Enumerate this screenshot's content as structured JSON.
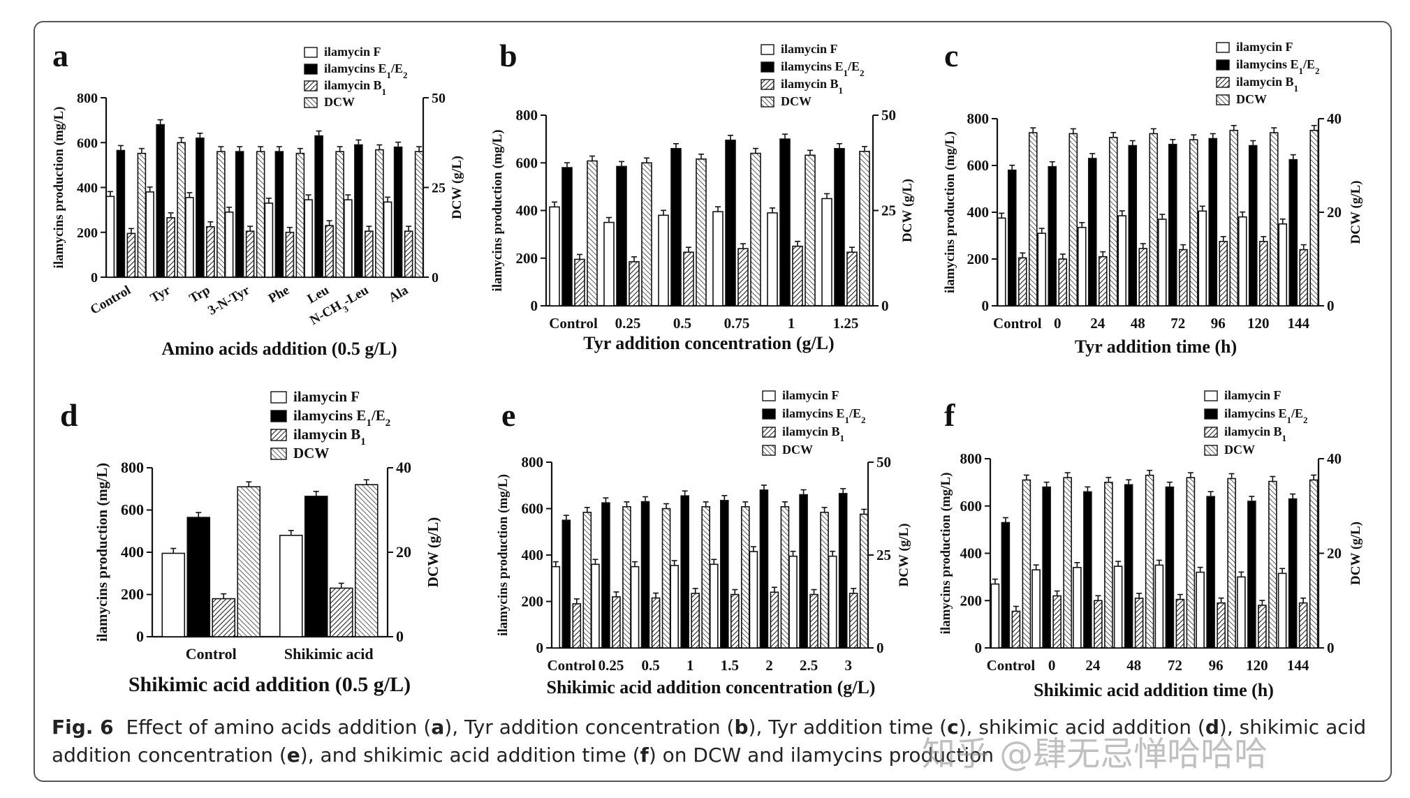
{
  "caption": {
    "prefix": "Fig. 6",
    "text_1": "Effect of amino acids addition (",
    "a": "a",
    "text_2": "), Tyr addition concentration (",
    "b": "b",
    "text_3": "), Tyr addition time (",
    "c": "c",
    "text_4": "), shikimic acid addition (",
    "d": "d",
    "text_5": "), shikimic acid addition concentration (",
    "e": "e",
    "text_6": "), and shikimic acid addition time (",
    "f": "f",
    "text_7": ") on DCW and ilamycins production"
  },
  "watermark": "知乎 @肆无忌惮哈哈哈",
  "chart_data": [
    {
      "panel": "a",
      "type": "bar",
      "xlabel": "Amino acids addition (0.5 g/L)",
      "ylabel": "ilamycins production (mg/L)",
      "ylim": [
        0,
        800
      ],
      "yticks": [
        0,
        200,
        400,
        600,
        800
      ],
      "y2label": "DCW (g/L)",
      "y2lim": [
        0,
        50
      ],
      "y2ticks": [
        0,
        25,
        50
      ],
      "categories": [
        "Control",
        "Tyr",
        "Trp",
        "3-N-Tyr",
        "Phe",
        "Leu",
        "N-CH3-Leu",
        "Ala"
      ],
      "series": [
        {
          "name": "ilamycin F",
          "axis": "left",
          "values": [
            360,
            380,
            355,
            290,
            330,
            345,
            345,
            335
          ]
        },
        {
          "name": "ilamycins E1/E2",
          "axis": "left",
          "values": [
            565,
            680,
            620,
            560,
            560,
            630,
            590,
            580
          ]
        },
        {
          "name": "ilamycin B1",
          "axis": "left",
          "values": [
            195,
            265,
            225,
            205,
            200,
            230,
            205,
            205
          ]
        },
        {
          "name": "DCW",
          "axis": "right",
          "values": [
            34.5,
            37.5,
            35.0,
            35.0,
            34.5,
            35.0,
            35.5,
            35.0
          ]
        }
      ]
    },
    {
      "panel": "b",
      "type": "bar",
      "xlabel": "Tyr addition concentration (g/L)",
      "ylabel": "ilamycins production (mg/L)",
      "ylim": [
        0,
        800
      ],
      "yticks": [
        0,
        200,
        400,
        600,
        800
      ],
      "y2label": "DCW (g/L)",
      "y2lim": [
        0,
        50
      ],
      "y2ticks": [
        0,
        25,
        50
      ],
      "categories": [
        "Control",
        "0.25",
        "0.5",
        "0.75",
        "1",
        "1.25"
      ],
      "series": [
        {
          "name": "ilamycin F",
          "axis": "left",
          "values": [
            415,
            350,
            380,
            395,
            390,
            450
          ]
        },
        {
          "name": "ilamycins E1/E2",
          "axis": "left",
          "values": [
            580,
            585,
            660,
            695,
            700,
            660
          ]
        },
        {
          "name": "ilamycin B1",
          "axis": "left",
          "values": [
            195,
            185,
            225,
            240,
            250,
            225
          ]
        },
        {
          "name": "DCW",
          "axis": "right",
          "values": [
            38.0,
            37.5,
            38.5,
            40.0,
            39.5,
            40.5
          ]
        }
      ]
    },
    {
      "panel": "c",
      "type": "bar",
      "xlabel": "Tyr addition time (h)",
      "ylabel": "ilamycins production (mg/L)",
      "ylim": [
        0,
        800
      ],
      "yticks": [
        0,
        200,
        400,
        600,
        800
      ],
      "y2label": "DCW (g/L)",
      "y2lim": [
        0,
        40
      ],
      "y2ticks": [
        0,
        20,
        40
      ],
      "categories": [
        "Control",
        "0",
        "24",
        "48",
        "72",
        "96",
        "120",
        "144"
      ],
      "series": [
        {
          "name": "ilamycin F",
          "axis": "left",
          "values": [
            375,
            310,
            335,
            385,
            370,
            405,
            380,
            350
          ]
        },
        {
          "name": "ilamycins E1/E2",
          "axis": "left",
          "values": [
            580,
            595,
            630,
            685,
            690,
            715,
            685,
            625
          ]
        },
        {
          "name": "ilamycin B1",
          "axis": "left",
          "values": [
            205,
            200,
            210,
            245,
            240,
            275,
            275,
            240
          ]
        },
        {
          "name": "DCW",
          "axis": "right",
          "values": [
            37.0,
            36.8,
            36.0,
            36.8,
            35.5,
            37.5,
            37.0,
            37.5
          ]
        }
      ]
    },
    {
      "panel": "d",
      "type": "bar",
      "xlabel": "Shikimic acid addition (0.5 g/L)",
      "ylabel": "ilamycins production (mg/L)",
      "ylim": [
        0,
        800
      ],
      "yticks": [
        0,
        200,
        400,
        600,
        800
      ],
      "y2label": "DCW (g/L)",
      "y2lim": [
        0,
        40
      ],
      "y2ticks": [
        0,
        20,
        40
      ],
      "categories": [
        "Control",
        "Shikimic acid"
      ],
      "series": [
        {
          "name": "ilamycin F",
          "axis": "left",
          "values": [
            395,
            480
          ]
        },
        {
          "name": "ilamycins E1/E2",
          "axis": "left",
          "values": [
            565,
            665
          ]
        },
        {
          "name": "ilamycin B1",
          "axis": "left",
          "values": [
            180,
            230
          ]
        },
        {
          "name": "DCW",
          "axis": "right",
          "values": [
            35.5,
            36.0
          ]
        }
      ]
    },
    {
      "panel": "e",
      "type": "bar",
      "xlabel": "Shikimic acid addition concentration (g/L)",
      "ylabel": "ilamycins production (mg/L)",
      "ylim": [
        0,
        800
      ],
      "yticks": [
        0,
        200,
        400,
        600,
        800
      ],
      "y2label": "DCW (g/L)",
      "y2lim": [
        0,
        50
      ],
      "y2ticks": [
        0,
        25,
        50
      ],
      "categories": [
        "Control",
        "0.25",
        "0.5",
        "1",
        "1.5",
        "2",
        "2.5",
        "3"
      ],
      "series": [
        {
          "name": "ilamycin F",
          "axis": "left",
          "values": [
            350,
            360,
            350,
            355,
            360,
            415,
            395,
            395
          ]
        },
        {
          "name": "ilamycins E1/E2",
          "axis": "left",
          "values": [
            550,
            625,
            630,
            655,
            635,
            680,
            660,
            665
          ]
        },
        {
          "name": "ilamycin B1",
          "axis": "left",
          "values": [
            190,
            220,
            215,
            235,
            230,
            240,
            230,
            235
          ]
        },
        {
          "name": "DCW",
          "axis": "right",
          "values": [
            36.5,
            38.0,
            37.5,
            38.0,
            38.0,
            38.0,
            36.5,
            36.0
          ]
        }
      ]
    },
    {
      "panel": "f",
      "type": "bar",
      "xlabel": "Shikimic acid addition time (h)",
      "ylabel": "ilamycins production (mg/L)",
      "ylim": [
        0,
        800
      ],
      "yticks": [
        0,
        200,
        400,
        600,
        800
      ],
      "y2label": "DCW (g/L)",
      "y2lim": [
        0,
        40
      ],
      "y2ticks": [
        0,
        20,
        40
      ],
      "categories": [
        "Control",
        "0",
        "24",
        "48",
        "72",
        "96",
        "120",
        "144"
      ],
      "series": [
        {
          "name": "ilamycin F",
          "axis": "left",
          "values": [
            270,
            330,
            340,
            345,
            350,
            320,
            300,
            315
          ]
        },
        {
          "name": "ilamycins E1/E2",
          "axis": "left",
          "values": [
            530,
            680,
            660,
            690,
            680,
            640,
            620,
            630
          ]
        },
        {
          "name": "ilamycin B1",
          "axis": "left",
          "values": [
            155,
            220,
            200,
            210,
            205,
            190,
            180,
            190
          ]
        },
        {
          "name": "DCW",
          "axis": "right",
          "values": [
            35.5,
            36.0,
            35.0,
            36.5,
            36.0,
            35.8,
            35.2,
            35.5
          ]
        }
      ]
    }
  ],
  "colors": {
    "ilamycin F": "#ffffff",
    "ilamycins E1/E2": "#000000",
    "stroke": "#111111"
  }
}
